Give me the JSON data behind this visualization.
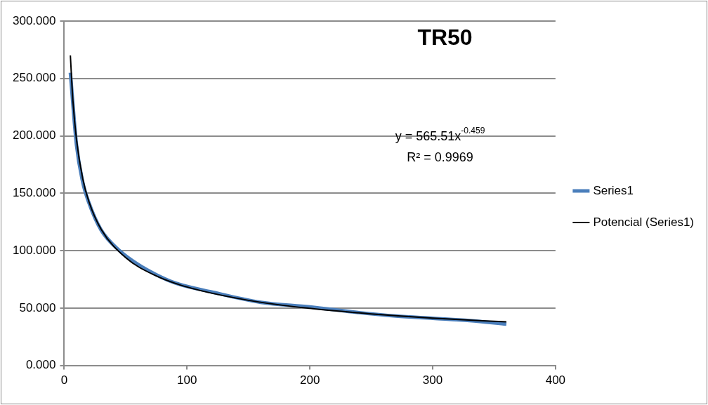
{
  "chart_data": {
    "type": "line",
    "title": "TR50",
    "annotations": [
      "y = 565.51x$^{-0.459}$",
      "R² = 0.9969"
    ],
    "xlim": [
      0,
      400
    ],
    "xticks": [
      0,
      100,
      200,
      300,
      400
    ],
    "ylim": [
      0,
      300
    ],
    "yticks": [
      {
        "value": 0,
        "label": "0.000"
      },
      {
        "value": 50,
        "label": "50.000"
      },
      {
        "value": 100,
        "label": "100.000"
      },
      {
        "value": 150,
        "label": "150.000"
      },
      {
        "value": 200,
        "label": "200.000"
      },
      {
        "value": 250,
        "label": "250.000"
      },
      {
        "value": 300,
        "label": "300.000"
      }
    ],
    "grid": "y",
    "legend": "right",
    "marker": "none",
    "line_style": "solid",
    "series": [
      {
        "name": "Series1",
        "color": "#4a7ebb",
        "x": [
          5,
          10,
          15,
          20,
          30,
          45,
          60,
          75,
          90,
          120,
          160,
          200,
          240,
          270,
          300,
          330,
          360
        ],
        "values": [
          255,
          192,
          160,
          142,
          118,
          100,
          88,
          79,
          72,
          64,
          55,
          51,
          46,
          43,
          41,
          39,
          36
        ]
      },
      {
        "name": "Potencial (Series1)",
        "color": "#000000",
        "x": [
          5,
          7,
          10,
          15,
          20,
          30,
          50,
          75,
          100,
          150,
          200,
          250,
          300,
          360
        ],
        "values": [
          270,
          231.5,
          196.6,
          163,
          143,
          118.7,
          93.9,
          77.9,
          68.3,
          56.7,
          49.7,
          44.9,
          41.2,
          37.9
        ]
      }
    ]
  }
}
